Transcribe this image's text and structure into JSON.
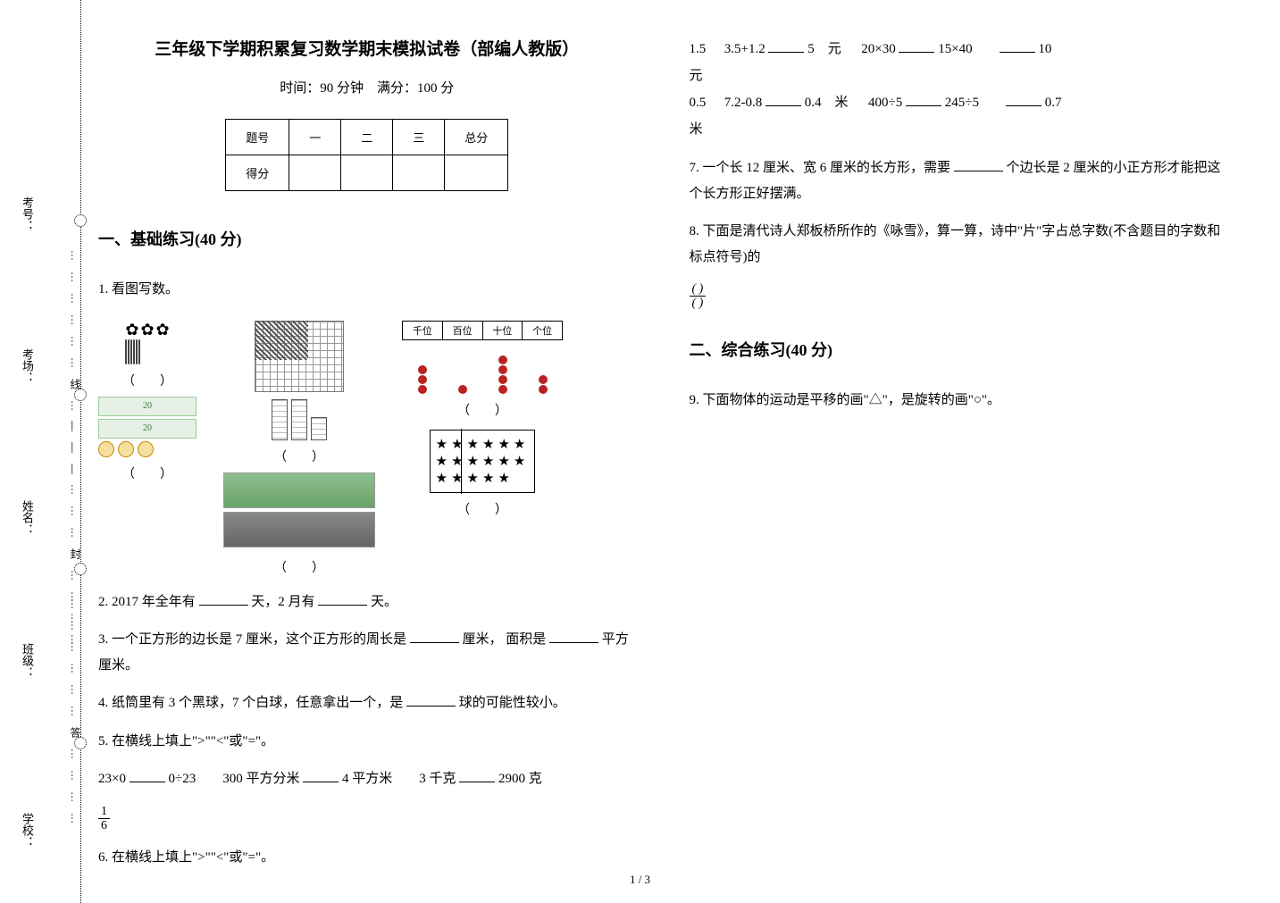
{
  "meta": {
    "page_indicator": "1 / 3"
  },
  "spine": {
    "labels": [
      "学校：",
      "班级：",
      "姓名：",
      "考场：",
      "考号："
    ],
    "glyphs": [
      "………………答…………",
      "………………封…………",
      "………………线…………"
    ]
  },
  "header": {
    "title": "三年级下学期积累复习数学期末模拟试卷（部编人教版）",
    "time_score": "时间：90 分钟　满分：100 分"
  },
  "score_table": {
    "row1": [
      "题号",
      "一",
      "二",
      "三",
      "总分"
    ],
    "row2_label": "得分"
  },
  "sections": {
    "s1": "一、基础练习(40 分)",
    "s2": "二、综合练习(40 分)"
  },
  "q1": {
    "text": "1.  看图写数。",
    "places": [
      "千位",
      "百位",
      "十位",
      "个位"
    ],
    "money_bill": "20",
    "paren": "（　　）"
  },
  "q2": {
    "text_a": "2.  2017 年全年有",
    "text_b": "天，2 月有",
    "text_c": "天。"
  },
  "q3": {
    "text_a": "3.  一个正方形的边长是 7 厘米，这个正方形的周长是",
    "text_b": "厘米，",
    "text_c": "面积是",
    "text_d": "平方厘米。"
  },
  "q4": {
    "text_a": "4.  纸筒里有 3 个黑球，7 个白球，任意拿出一个，是",
    "text_b": "球的可能性较小。"
  },
  "q5": {
    "text": "5.  在横线上填上\">\"\"<\"或\"=\"。",
    "a": "23×0",
    "b": "0÷23",
    "c": "300 平方分米",
    "d": "4 平方米",
    "e": "3 千克",
    "f": "2900 克"
  },
  "frac16": {
    "num": "1",
    "den": "6"
  },
  "q6": {
    "text": "6.  在横线上填上\">\"\"<\"或\"=\"。",
    "left1": "1.5元",
    "left2": "0.5米",
    "a": "3.5+1.2",
    "av": "5",
    "b": "元",
    "c": "20×30",
    "d": "15×40",
    "r1": "10",
    "e": "7.2-0.8",
    "ev": "0.4",
    "f": "米",
    "g": "400÷5",
    "h": "245÷5",
    "r2": "0.7"
  },
  "q7": {
    "text_a": "7.  一个长 12 厘米、宽 6 厘米的长方形，需要",
    "text_b": "个边长是 2 厘米的小正方形才能把这个长方形正好摆满。"
  },
  "q8": {
    "text": "8.  下面是清代诗人郑板桥所作的《咏雪》，算一算，诗中\"片\"字占总字数(不含题目的字数和标点符号)的"
  },
  "fracblank": {
    "num": "( )",
    "den": "( )"
  },
  "q9": {
    "text": "9.  下面物体的运动是平移的画\"△\"，是旋转的画\"○\"。"
  },
  "colors": {
    "text": "#000000",
    "bg": "#ffffff",
    "grid": "#999999",
    "bead": "#bb2222",
    "bill_bg": "#e6f0e6",
    "bill_border": "#9acd9a",
    "coin_border": "#cc8800",
    "coin_bg": "#f5e0a0"
  }
}
